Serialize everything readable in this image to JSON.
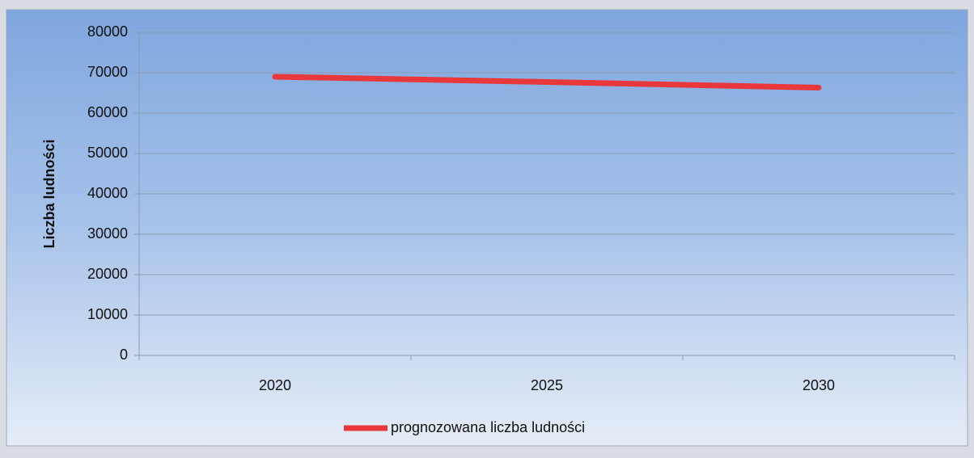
{
  "chart_data": {
    "type": "line",
    "y_label": "Liczba ludności",
    "categories": [
      "2020",
      "2025",
      "2030"
    ],
    "series": [
      {
        "name": "prognozowana liczba ludności",
        "color": "#e8383b",
        "values": [
          69000,
          67700,
          66300
        ]
      }
    ],
    "ylim": [
      0,
      80000
    ],
    "yticks": [
      0,
      10000,
      20000,
      30000,
      40000,
      50000,
      60000,
      70000,
      80000
    ],
    "grid": true,
    "legend": "bottom"
  }
}
